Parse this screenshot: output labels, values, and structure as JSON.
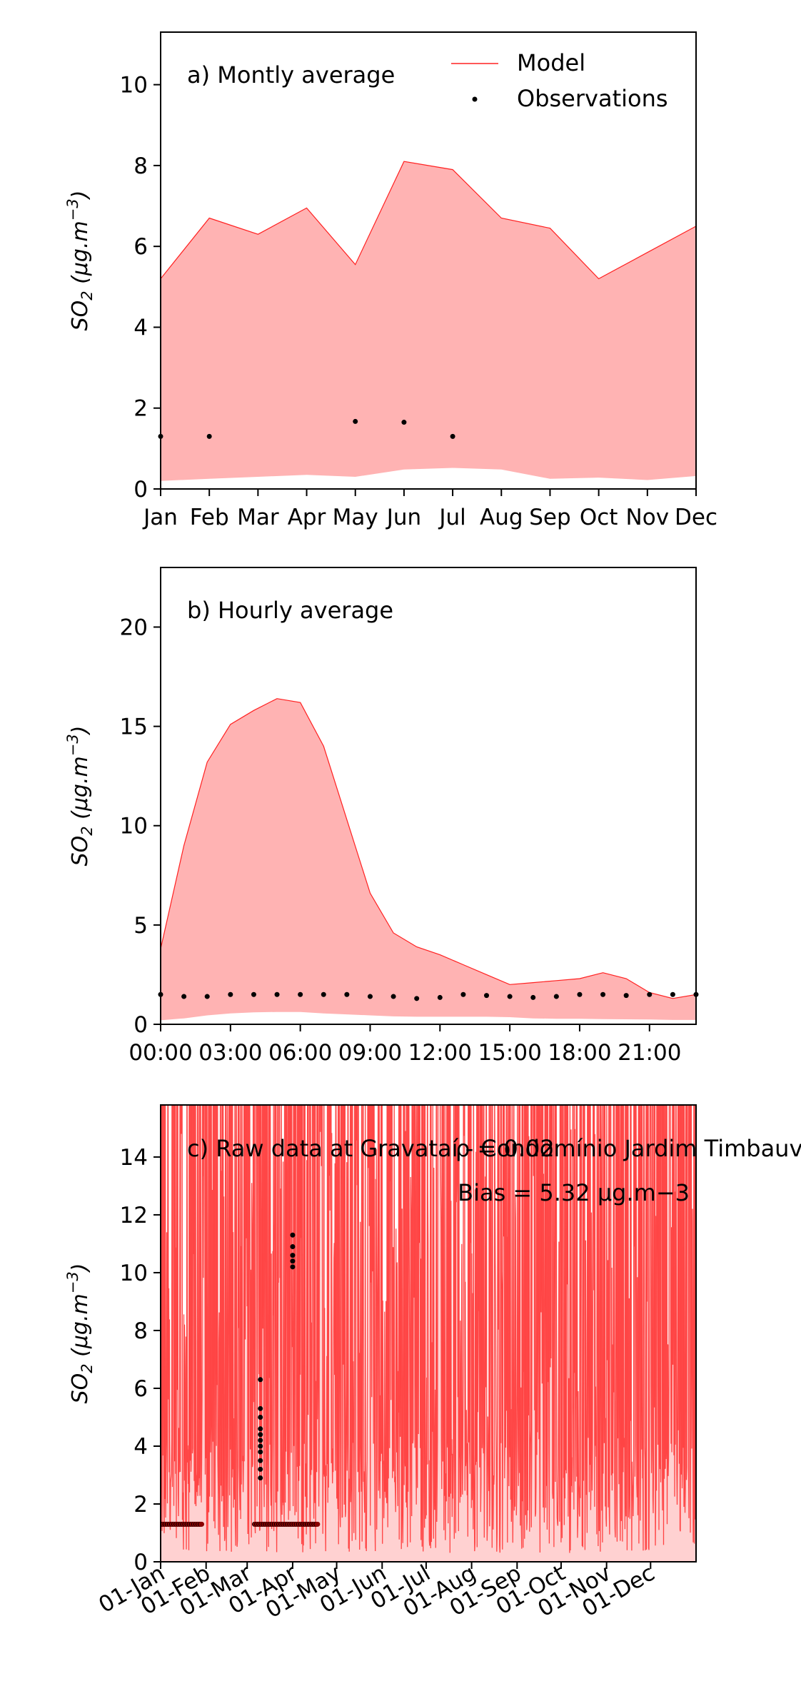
{
  "chart_data": [
    {
      "type": "area",
      "title": "a) Montly average",
      "ylabel": "SO2 (μg.m−3)",
      "ylim": [
        0,
        11.3
      ],
      "yticks": [
        0,
        2,
        4,
        6,
        8,
        10
      ],
      "categories": [
        "Jan",
        "Feb",
        "Mar",
        "Apr",
        "May",
        "Jun",
        "Jul",
        "Aug",
        "Sep",
        "Oct",
        "Nov",
        "Dec"
      ],
      "legend": {
        "placement": "top-right",
        "entries": [
          "Model",
          "Observations"
        ]
      },
      "series": [
        {
          "name": "Model",
          "kind": "band",
          "upper": [
            5.2,
            6.7,
            6.3,
            6.95,
            5.55,
            8.1,
            7.9,
            6.7,
            6.45,
            5.2,
            5.85,
            6.5
          ],
          "lower": [
            0.2,
            0.25,
            0.3,
            0.35,
            0.3,
            0.48,
            0.52,
            0.48,
            0.25,
            0.28,
            0.22,
            0.32
          ]
        },
        {
          "name": "Observations",
          "kind": "points",
          "x": [
            0,
            1,
            4,
            5,
            6
          ],
          "y": [
            1.3,
            1.3,
            1.67,
            1.65,
            1.3
          ]
        }
      ]
    },
    {
      "type": "area",
      "title": "b) Hourly average",
      "ylabel": "SO2 (μg.m−3)",
      "ylim": [
        0,
        23
      ],
      "yticks": [
        0,
        5,
        10,
        15,
        20
      ],
      "xticks": [
        "00:00",
        "03:00",
        "06:00",
        "09:00",
        "12:00",
        "15:00",
        "18:00",
        "21:00"
      ],
      "series": [
        {
          "name": "Model",
          "kind": "band",
          "x": [
            0,
            1,
            2,
            3,
            4,
            5,
            6,
            7,
            8,
            9,
            10,
            11,
            12,
            13,
            14,
            15,
            16,
            17,
            18,
            19,
            20,
            21,
            22,
            23
          ],
          "upper": [
            3.8,
            9.0,
            13.2,
            15.1,
            15.8,
            16.4,
            16.2,
            14.0,
            10.3,
            6.6,
            4.6,
            3.9,
            3.5,
            3.0,
            2.5,
            2.0,
            2.1,
            2.2,
            2.3,
            2.6,
            2.3,
            1.6,
            1.3,
            1.5
          ],
          "lower": [
            0.2,
            0.3,
            0.45,
            0.55,
            0.6,
            0.62,
            0.62,
            0.55,
            0.5,
            0.45,
            0.4,
            0.38,
            0.38,
            0.38,
            0.38,
            0.36,
            0.3,
            0.28,
            0.28,
            0.26,
            0.25,
            0.24,
            0.22,
            0.22
          ]
        },
        {
          "name": "Observations",
          "kind": "points",
          "x": [
            0,
            1,
            2,
            3,
            4,
            5,
            6,
            7,
            8,
            9,
            10,
            11,
            12,
            13,
            14,
            15,
            16,
            17,
            18,
            19,
            20,
            21,
            22,
            23
          ],
          "y": [
            1.5,
            1.4,
            1.4,
            1.5,
            1.5,
            1.5,
            1.5,
            1.5,
            1.5,
            1.4,
            1.4,
            1.3,
            1.35,
            1.5,
            1.45,
            1.4,
            1.35,
            1.4,
            1.5,
            1.5,
            1.45,
            1.5,
            1.5,
            1.5
          ]
        }
      ]
    },
    {
      "type": "line",
      "title": "c) Raw data at Gravataí - Condomínio Jardim Timbauva",
      "ylabel": "SO2 (μg.m−3)",
      "ylim": [
        0,
        15.8
      ],
      "yticks": [
        0,
        2,
        4,
        6,
        8,
        10,
        12,
        14
      ],
      "xticks": [
        "01-Jan",
        "01-Feb",
        "01-Mar",
        "01-Apr",
        "01-May",
        "01-Jun",
        "01-Jul",
        "01-Aug",
        "01-Sep",
        "01-Oct",
        "01-Nov",
        "01-Dec"
      ],
      "xtick_days": [
        0,
        31,
        59,
        90,
        120,
        151,
        181,
        212,
        243,
        273,
        304,
        334
      ],
      "xlim_days": [
        0,
        365
      ],
      "annotations": [
        "ρ = 0.02",
        "Bias = 5.32 μg.m−3"
      ],
      "model_hourly": {
        "name": "Model",
        "color": "#ff2020",
        "description_only": false
      },
      "observations": [
        {
          "day_start": 0,
          "day_end": 28,
          "y": 1.3
        },
        {
          "day_start": 64,
          "day_end": 107,
          "y": 1.3
        },
        {
          "day_start": 68,
          "day_end": 69,
          "y_values": [
            2.9,
            3.2,
            3.5,
            3.8,
            4.0,
            4.2,
            4.4,
            4.6,
            5.0,
            5.3,
            6.3
          ]
        },
        {
          "day_start": 90,
          "day_end": 91,
          "y_values": [
            10.2,
            10.4,
            10.6,
            10.9,
            11.3
          ]
        }
      ]
    }
  ],
  "colors": {
    "model_line": "#ff2020",
    "model_fill": "#ffb3b3",
    "raw_line": "#ff2a2a",
    "raw_fill": "#ff9a9a",
    "observation": "#000000",
    "observation_dense": "#8b0000"
  },
  "labels": {
    "annotation_rho": "ρ = 0.02",
    "annotation_bias": "Bias = 5.32 μg.m−3"
  }
}
